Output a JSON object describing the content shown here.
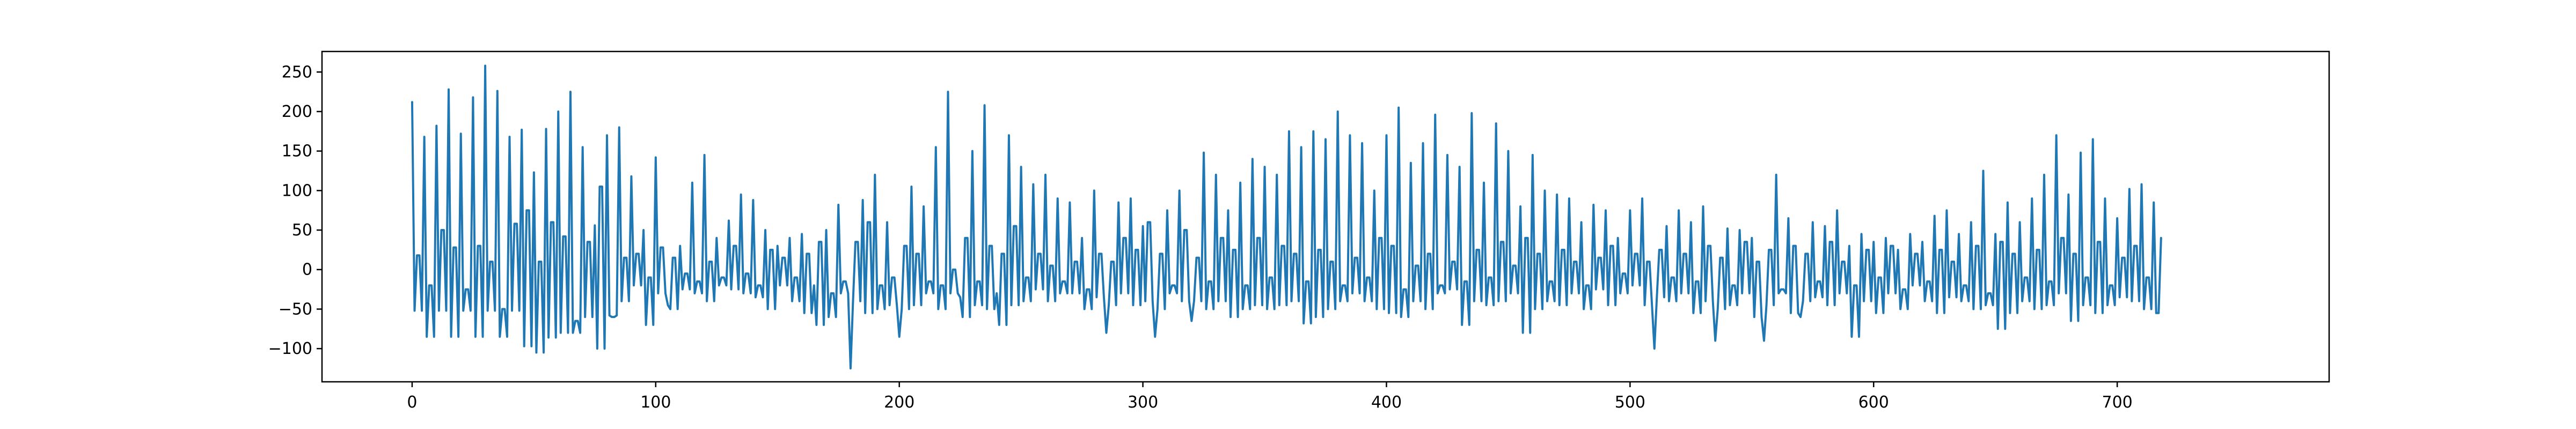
{
  "chart_data": {
    "type": "line",
    "title": "",
    "xlabel": "",
    "ylabel": "",
    "xlim": [
      -37,
      787
    ],
    "ylim": [
      -142,
      276
    ],
    "x_ticks": [
      0,
      100,
      200,
      300,
      400,
      500,
      600,
      700
    ],
    "y_ticks": [
      -100,
      -50,
      0,
      50,
      100,
      150,
      200,
      250
    ],
    "x_tick_labels": [
      "0",
      "100",
      "200",
      "300",
      "400",
      "500",
      "600",
      "700"
    ],
    "y_tick_labels": [
      "−100",
      "−50",
      "0",
      "50",
      "100",
      "150",
      "200",
      "250"
    ],
    "grid": false,
    "legend": "none",
    "series": [
      {
        "color": "#1f77b4",
        "x_start": 0,
        "values": [
          212,
          -52,
          18,
          18,
          -52,
          168,
          -85,
          -20,
          -20,
          -85,
          182,
          -52,
          50,
          50,
          -52,
          228,
          -85,
          28,
          28,
          -85,
          172,
          -52,
          -25,
          -25,
          -52,
          218,
          -85,
          30,
          30,
          -85,
          258,
          -52,
          10,
          10,
          -52,
          226,
          -85,
          -50,
          -50,
          -85,
          168,
          -52,
          58,
          58,
          -52,
          177,
          -97,
          75,
          75,
          -97,
          123,
          -105,
          10,
          10,
          -105,
          178,
          -86,
          60,
          60,
          -86,
          200,
          -80,
          42,
          42,
          -80,
          225,
          -80,
          -65,
          -65,
          -80,
          155,
          -60,
          35,
          35,
          -60,
          56,
          -100,
          105,
          105,
          -100,
          170,
          -58,
          -60,
          -60,
          -58,
          180,
          -40,
          15,
          15,
          -40,
          118,
          -20,
          20,
          20,
          -20,
          50,
          -70,
          -10,
          -10,
          -70,
          142,
          -30,
          28,
          28,
          -30,
          -45,
          -50,
          15,
          15,
          -50,
          30,
          -25,
          -5,
          -5,
          -25,
          110,
          -30,
          -15,
          -15,
          -30,
          145,
          -40,
          10,
          10,
          -40,
          40,
          -20,
          -10,
          -10,
          -20,
          62,
          -25,
          30,
          30,
          -25,
          95,
          -30,
          -5,
          -5,
          -30,
          88,
          -35,
          -20,
          -20,
          -35,
          50,
          -50,
          25,
          25,
          -50,
          30,
          -20,
          15,
          15,
          -20,
          40,
          -40,
          -10,
          -10,
          -40,
          45,
          -55,
          20,
          20,
          -55,
          -20,
          -70,
          35,
          35,
          -70,
          50,
          -60,
          -30,
          -30,
          -60,
          82,
          -30,
          -15,
          -15,
          -30,
          -125,
          -40,
          35,
          35,
          -40,
          88,
          -55,
          60,
          60,
          -55,
          120,
          -50,
          -20,
          -20,
          -50,
          60,
          -45,
          -10,
          -10,
          -45,
          -85,
          -50,
          30,
          30,
          -50,
          105,
          -45,
          20,
          20,
          -45,
          80,
          -30,
          -15,
          -15,
          -30,
          155,
          -50,
          -20,
          -20,
          -50,
          225,
          -30,
          0,
          0,
          -30,
          -35,
          -60,
          40,
          40,
          -60,
          150,
          -45,
          -15,
          -15,
          -45,
          208,
          -50,
          30,
          30,
          -50,
          -30,
          -70,
          20,
          20,
          -70,
          170,
          -45,
          55,
          55,
          -45,
          130,
          -40,
          -10,
          -10,
          -40,
          108,
          -25,
          20,
          20,
          -25,
          120,
          -40,
          5,
          5,
          -40,
          90,
          -30,
          -15,
          -15,
          -30,
          85,
          -30,
          10,
          10,
          -30,
          40,
          -50,
          -25,
          -25,
          -50,
          100,
          -35,
          20,
          20,
          -35,
          -80,
          -45,
          10,
          10,
          -45,
          85,
          -30,
          40,
          40,
          -30,
          90,
          -45,
          25,
          25,
          -45,
          55,
          -40,
          60,
          60,
          -40,
          -85,
          -50,
          20,
          20,
          -50,
          75,
          -30,
          -20,
          -20,
          -30,
          100,
          -40,
          50,
          50,
          -40,
          -65,
          -40,
          15,
          15,
          -40,
          148,
          -50,
          -15,
          -15,
          -50,
          120,
          -40,
          40,
          40,
          -40,
          75,
          -60,
          25,
          25,
          -60,
          110,
          -50,
          -20,
          -20,
          -50,
          140,
          -45,
          40,
          40,
          -45,
          130,
          -50,
          -10,
          -10,
          -50,
          120,
          -45,
          30,
          30,
          -45,
          175,
          -40,
          20,
          20,
          -40,
          155,
          -68,
          -15,
          -15,
          -68,
          175,
          -60,
          25,
          25,
          -60,
          165,
          -50,
          10,
          10,
          -50,
          200,
          -40,
          -20,
          -20,
          -40,
          170,
          -30,
          15,
          15,
          -30,
          160,
          -40,
          -10,
          -10,
          -40,
          100,
          -50,
          40,
          40,
          -50,
          170,
          -55,
          30,
          30,
          -55,
          205,
          -60,
          -25,
          -25,
          -60,
          135,
          -40,
          5,
          5,
          -40,
          160,
          -50,
          20,
          20,
          -50,
          196,
          -30,
          -20,
          -20,
          -30,
          145,
          -25,
          10,
          10,
          -25,
          130,
          -70,
          -15,
          -15,
          -70,
          198,
          -40,
          25,
          25,
          -40,
          110,
          -45,
          -10,
          -10,
          -45,
          185,
          -40,
          35,
          35,
          -40,
          150,
          -30,
          5,
          5,
          -30,
          80,
          -80,
          40,
          40,
          -80,
          145,
          -50,
          20,
          20,
          -50,
          100,
          -40,
          -15,
          -15,
          -40,
          95,
          -45,
          25,
          25,
          -45,
          90,
          -30,
          10,
          10,
          -30,
          60,
          -50,
          -20,
          -20,
          -50,
          82,
          -25,
          15,
          15,
          -25,
          75,
          -45,
          30,
          30,
          -45,
          40,
          -30,
          -5,
          -5,
          -30,
          75,
          -20,
          20,
          20,
          -20,
          90,
          -45,
          10,
          10,
          -45,
          -100,
          -35,
          25,
          25,
          -35,
          55,
          -40,
          -10,
          -10,
          -40,
          75,
          -30,
          20,
          20,
          -30,
          60,
          -55,
          -15,
          -15,
          -55,
          80,
          -40,
          30,
          30,
          -40,
          -90,
          -50,
          15,
          15,
          -50,
          52,
          -45,
          -20,
          -20,
          -45,
          50,
          -30,
          35,
          35,
          -30,
          40,
          -60,
          10,
          10,
          -60,
          -90,
          -45,
          25,
          25,
          -45,
          120,
          -30,
          -25,
          -25,
          -30,
          65,
          -55,
          30,
          30,
          -55,
          -60,
          -40,
          20,
          20,
          -40,
          60,
          -35,
          -15,
          -15,
          -35,
          55,
          -45,
          35,
          35,
          -45,
          75,
          -30,
          10,
          10,
          -30,
          30,
          -85,
          -20,
          -20,
          -85,
          45,
          -40,
          25,
          25,
          -40,
          35,
          -55,
          -10,
          -10,
          -55,
          40,
          -30,
          30,
          30,
          -30,
          25,
          -50,
          -25,
          -25,
          -50,
          45,
          -20,
          20,
          20,
          -20,
          35,
          -40,
          -15,
          -15,
          -40,
          68,
          -55,
          25,
          25,
          -55,
          75,
          -35,
          10,
          10,
          -35,
          45,
          -40,
          -20,
          -20,
          -40,
          60,
          -50,
          30,
          30,
          -50,
          125,
          -45,
          -30,
          -30,
          -45,
          45,
          -75,
          35,
          35,
          -75,
          85,
          -55,
          20,
          20,
          -55,
          60,
          -40,
          -10,
          -10,
          -40,
          90,
          -50,
          25,
          25,
          -50,
          120,
          -45,
          -15,
          -15,
          -45,
          170,
          -30,
          40,
          40,
          -30,
          95,
          -65,
          20,
          20,
          -65,
          148,
          -45,
          -10,
          -10,
          -45,
          165,
          -55,
          35,
          35,
          -55,
          90,
          -45,
          -20,
          -20,
          -45,
          65,
          -35,
          15,
          15,
          -35,
          102,
          -40,
          30,
          30,
          -40,
          108,
          -50,
          -10,
          -10,
          -50,
          85,
          -55,
          -55,
          40
        ]
      }
    ]
  }
}
